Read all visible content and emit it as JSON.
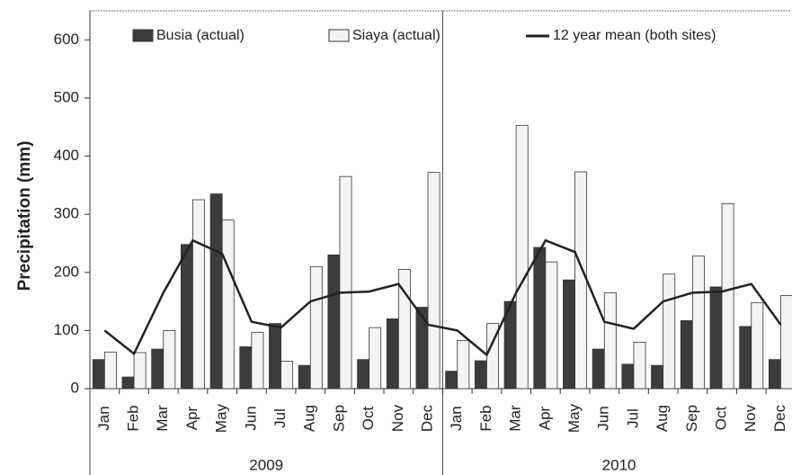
{
  "chart_data": {
    "type": "bar_line",
    "y_label": "Precipitation (mm)",
    "categories": [
      "Jan",
      "Feb",
      "Mar",
      "Apr",
      "May",
      "Jun",
      "Jul",
      "Aug",
      "Sep",
      "Oct",
      "Nov",
      "Dec",
      "Jan",
      "Feb",
      "Mar",
      "Apr",
      "May",
      "Jun",
      "Jul",
      "Aug",
      "Sep",
      "Oct",
      "Nov",
      "Dec"
    ],
    "x_groups": [
      "2009",
      "2010"
    ],
    "series": [
      {
        "name": "Busia (actual)",
        "kind": "bar",
        "color": "#3c3c3c",
        "values": [
          50,
          20,
          68,
          248,
          335,
          72,
          112,
          40,
          230,
          50,
          120,
          140,
          30,
          48,
          150,
          243,
          187,
          68,
          42,
          40,
          117,
          175,
          107,
          50
        ]
      },
      {
        "name": "Siaya (actual)",
        "kind": "bar",
        "color": "#f4f4f4",
        "values": [
          63,
          62,
          100,
          325,
          290,
          97,
          47,
          210,
          365,
          105,
          205,
          372,
          83,
          112,
          453,
          218,
          373,
          165,
          80,
          197,
          228,
          318,
          148,
          160
        ]
      },
      {
        "name": "12 year mean (both sites)",
        "kind": "line",
        "color": "#222222",
        "values": [
          100,
          60,
          165,
          255,
          232,
          115,
          105,
          150,
          165,
          167,
          180,
          110,
          100,
          58,
          165,
          255,
          235,
          115,
          103,
          150,
          165,
          167,
          180,
          110
        ]
      }
    ],
    "ylim": [
      0,
      650
    ],
    "yticks": [
      0,
      100,
      200,
      300,
      400,
      500,
      600
    ]
  }
}
